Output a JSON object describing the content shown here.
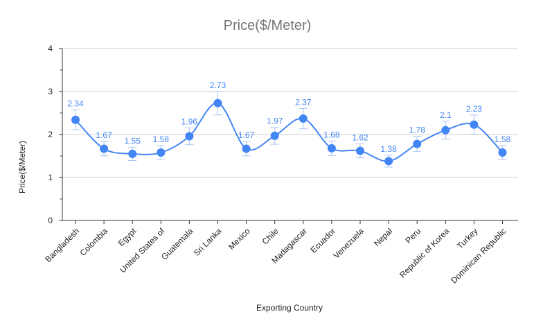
{
  "colors": {
    "series": "#4285f4",
    "error_bar": "#a9c4f5",
    "gridline": "#cccccc",
    "axis": "#333333",
    "title": "#757575"
  },
  "chart_data": {
    "type": "line",
    "title": "Price($/Meter)",
    "xlabel": "Exporting Country",
    "ylabel": "Price($/Meter)",
    "ylim": [
      0,
      4
    ],
    "yticks": [
      "0",
      "1",
      "2",
      "3",
      "4"
    ],
    "grid": true,
    "legend": "none",
    "smooth": true,
    "error_bars": "±10%",
    "categories": [
      "Bangladesh",
      "Colombia",
      "Egypt",
      "United States of",
      "Guatemala",
      "Sri Lanka",
      "Mexico",
      "Chile",
      "Madagascar",
      "Ecuador",
      "Venezuela",
      "Nepal",
      "Peru",
      "Republic of Korea",
      "Turkey",
      "Dominican Republic"
    ],
    "values": [
      2.34,
      1.67,
      1.55,
      1.58,
      1.96,
      2.73,
      1.67,
      1.97,
      2.37,
      1.68,
      1.62,
      1.38,
      1.78,
      2.1,
      2.23,
      1.58
    ],
    "data_labels": [
      "2.34",
      "1.67",
      "1.55",
      "1.58",
      "1.96",
      "2.73",
      "1.67",
      "1.97",
      "2.37",
      "1.68",
      "1.62",
      "1.38",
      "1.78",
      "2.1",
      "2.23",
      "1.58"
    ]
  }
}
